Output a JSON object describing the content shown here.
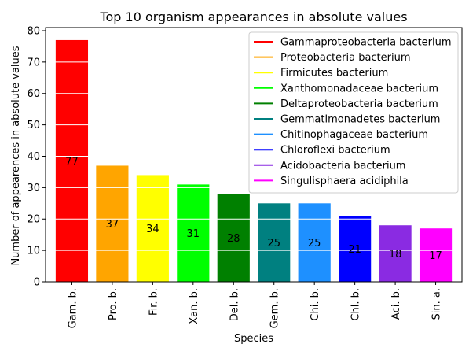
{
  "chart_data": {
    "type": "bar",
    "title": "Top 10 organism appearances in absolute values",
    "xlabel": "Species",
    "ylabel": "Number of appearences in absolute values",
    "ylim": [
      0,
      81
    ],
    "yticks": [
      0,
      10,
      20,
      30,
      40,
      50,
      60,
      70,
      80
    ],
    "categories": [
      "Gam. b.",
      "Pro. b.",
      "Fir. b.",
      "Xan. b.",
      "Del. b.",
      "Gem. b.",
      "Chi. b.",
      "Chl. b.",
      "Aci. b.",
      "Sin. a."
    ],
    "values": [
      77,
      37,
      34,
      31,
      28,
      25,
      25,
      21,
      18,
      17
    ],
    "colors": [
      "#ff0000",
      "#ffa500",
      "#ffff00",
      "#00ff00",
      "#008000",
      "#008080",
      "#1e90ff",
      "#0000ff",
      "#8a2be2",
      "#ff00ff"
    ],
    "legend": {
      "placement": "top-right",
      "entries": [
        "Gammaproteobacteria bacterium",
        "Proteobacteria bacterium",
        "Firmicutes bacterium",
        "Xanthomonadaceae bacterium",
        "Deltaproteobacteria bacterium",
        "Gemmatimonadetes bacterium",
        "Chitinophagaceae bacterium",
        "Chloroflexi bacterium",
        "Acidobacteria bacterium",
        "Singulisphaera acidiphila"
      ]
    },
    "grid": "y-axis, white lines drawn over bars",
    "data_labels": true
  }
}
